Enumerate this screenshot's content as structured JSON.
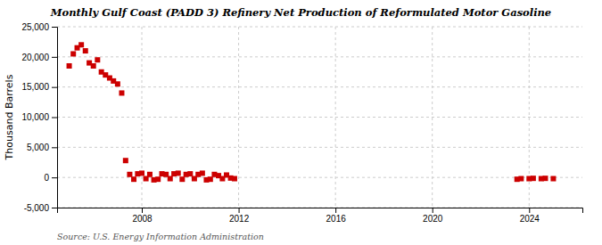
{
  "chart_data": {
    "type": "scatter",
    "title": "Monthly Gulf Coast (PADD 3) Refinery Net Production of Reformulated Motor Gasoline",
    "ylabel": "Thousand Barrels",
    "source": "Source: U.S. Energy Information Administration",
    "color": "#cc0000",
    "marker": "square",
    "grid": true,
    "xlim": [
      2004.5,
      2026.2
    ],
    "xticks": [
      2008,
      2012,
      2016,
      2020,
      2024
    ],
    "ylim": [
      -5000,
      25000
    ],
    "yticks": [
      {
        "value": -5000,
        "label": "-5,000"
      },
      0,
      {
        "value": 5000,
        "label": "5,000"
      },
      {
        "value": 10000,
        "label": "10,000"
      },
      {
        "value": 15000,
        "label": "15,000"
      },
      {
        "value": 20000,
        "label": "20,000"
      },
      {
        "value": 25000,
        "label": "25,000"
      }
    ],
    "x": [
      2005.0,
      2005.17,
      2005.33,
      2005.5,
      2005.67,
      2005.83,
      2006.0,
      2006.17,
      2006.33,
      2006.5,
      2006.67,
      2006.83,
      2007.0,
      2007.17,
      2007.33,
      2007.5,
      2007.67,
      2007.83,
      2008.0,
      2008.17,
      2008.33,
      2008.5,
      2008.67,
      2008.83,
      2009.0,
      2009.17,
      2009.33,
      2009.5,
      2009.67,
      2009.83,
      2010.0,
      2010.17,
      2010.33,
      2010.5,
      2010.67,
      2010.83,
      2011.0,
      2011.17,
      2011.33,
      2011.5,
      2011.67,
      2011.83,
      2023.5,
      2023.67,
      2024.0,
      2024.17,
      2024.5,
      2024.67,
      2025.0
    ],
    "values": [
      18500,
      20500,
      21500,
      22000,
      21000,
      19000,
      18500,
      19500,
      17500,
      17000,
      16500,
      16000,
      15500,
      14000,
      2800,
      500,
      -300,
      600,
      700,
      -200,
      500,
      -400,
      -300,
      600,
      500,
      -200,
      600,
      700,
      -300,
      500,
      600,
      -200,
      500,
      700,
      -400,
      -300,
      500,
      300,
      -200,
      400,
      -100,
      -200,
      -300,
      -200,
      -200,
      -150,
      -200,
      -150,
      -200
    ]
  }
}
